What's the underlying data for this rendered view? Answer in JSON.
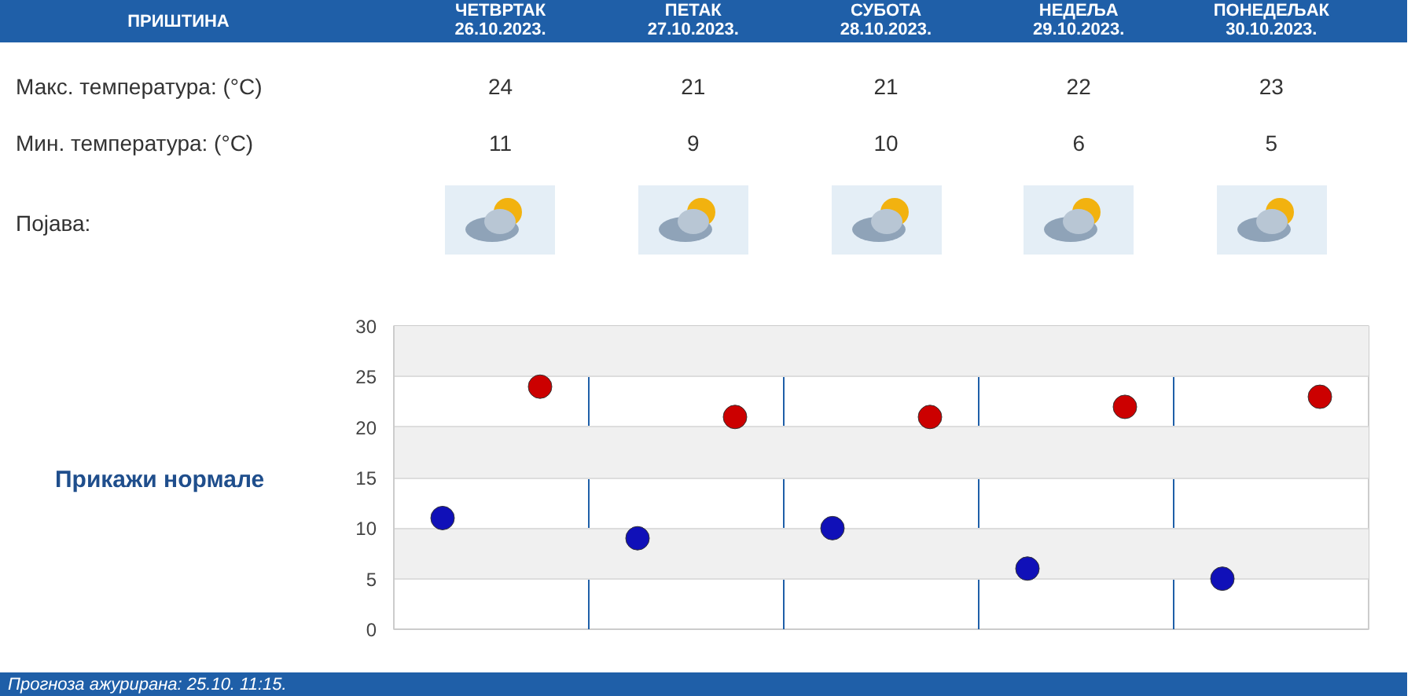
{
  "chart_data": {
    "type": "scatter",
    "title": "ПРИШТИНА",
    "categories": [
      null,
      null,
      null,
      null,
      null
    ],
    "series": [
      {
        "color": "#cc0000",
        "values": [
          24,
          21,
          21,
          22,
          23
        ]
      },
      {
        "color": "#1010b8",
        "values": [
          11,
          9,
          10,
          6,
          5
        ]
      }
    ],
    "ylim": [
      0,
      30
    ],
    "yticks": [
      0,
      5,
      10,
      15,
      20,
      25,
      30
    ],
    "grid": true,
    "tick_labels": "y",
    "marker": "circle",
    "data_labels": true,
    "annotations": [
      "ЧЕТВРТАК 26.10.2023.",
      "ПЕТАК 27.10.2023.",
      "СУБОТА 28.10.2023.",
      "НЕДЕЉА 29.10.2023.",
      "ПОНЕДЕЉАК 30.10.2023.",
      "Макс. температура: (°C)",
      "Мин. температура: (°C)",
      "Појава:",
      "Прикажи нормале",
      "Прогноза ажурирана:  25.10. 11:15."
    ]
  }
}
